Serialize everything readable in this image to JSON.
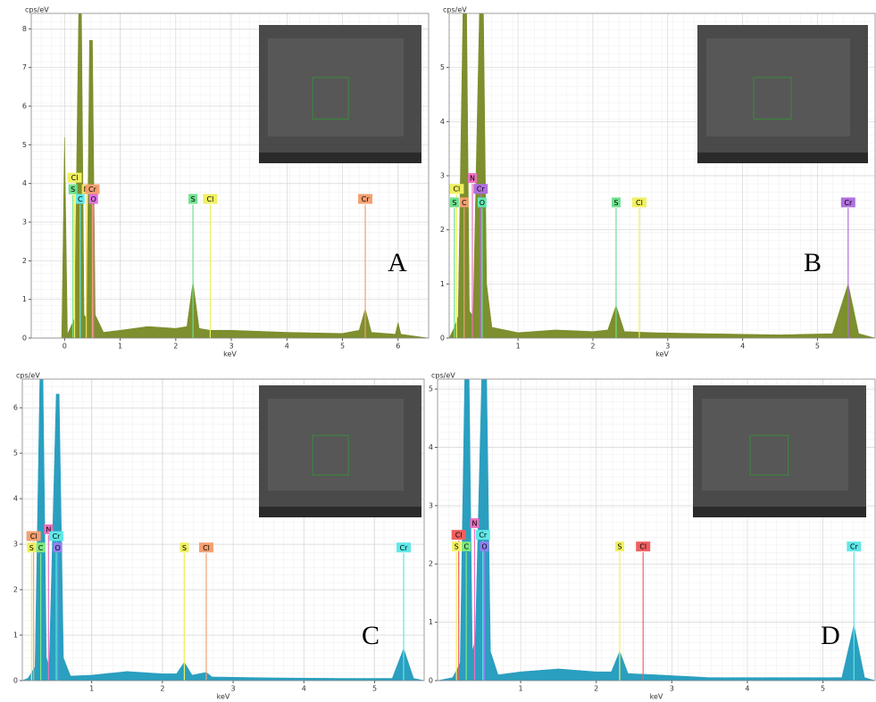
{
  "chart_data": [
    {
      "type": "area",
      "panel": "A",
      "ylabel": "cps/eV",
      "xlabel": "keV",
      "color": "#7d8f2e",
      "grid": true,
      "xlim": [
        -0.6,
        6.55
      ],
      "ylim": [
        0,
        8.4
      ],
      "xticks": [
        0,
        1,
        2,
        3,
        4,
        5,
        6
      ],
      "yticks": [
        0,
        1,
        2,
        3,
        4,
        5,
        6,
        7,
        8
      ],
      "x": [
        -0.6,
        -0.05,
        0,
        0.05,
        0.18,
        0.26,
        0.3,
        0.35,
        0.4,
        0.45,
        0.5,
        0.55,
        0.7,
        1.0,
        1.5,
        2.0,
        2.2,
        2.31,
        2.42,
        2.62,
        3.0,
        4.0,
        5.0,
        5.3,
        5.41,
        5.52,
        5.95,
        6.0,
        6.05,
        6.55
      ],
      "values": [
        0,
        0,
        5.2,
        0.1,
        0.5,
        9,
        9,
        0.6,
        0.5,
        7.7,
        7.7,
        0.6,
        0.15,
        0.2,
        0.3,
        0.25,
        0.3,
        1.45,
        0.25,
        0.2,
        0.2,
        0.15,
        0.12,
        0.2,
        0.75,
        0.15,
        0.1,
        0.4,
        0.1,
        0
      ],
      "markers": [
        {
          "label": "S",
          "x": 0.15,
          "y": 3.7,
          "color": "#6fe08f"
        },
        {
          "label": "Cl",
          "x": 0.18,
          "y": 4.0,
          "color": "#f0f060"
        },
        {
          "label": "C",
          "x": 0.28,
          "y": 3.45,
          "color": "#60e8e8"
        },
        {
          "label": "N",
          "x": 0.39,
          "y": 3.7,
          "color": "#f0e060"
        },
        {
          "label": "Cr",
          "x": 0.5,
          "y": 3.7,
          "color": "#f4a070"
        },
        {
          "label": "O",
          "x": 0.52,
          "y": 3.45,
          "color": "#e070e0"
        },
        {
          "label": "S",
          "x": 2.31,
          "y": 3.45,
          "color": "#6fe08f"
        },
        {
          "label": "Cl",
          "x": 2.62,
          "y": 3.45,
          "color": "#f0f060"
        },
        {
          "label": "Cr",
          "x": 5.41,
          "y": 3.45,
          "color": "#f4a070"
        }
      ]
    },
    {
      "type": "area",
      "panel": "B",
      "ylabel": "cps/eV",
      "xlabel": "keV",
      "color": "#7d8f2e",
      "grid": true,
      "xlim": [
        0.08,
        5.77
      ],
      "ylim": [
        0,
        6
      ],
      "xticks": [
        1,
        2,
        3,
        4,
        5
      ],
      "yticks": [
        0,
        1,
        2,
        3,
        4,
        5
      ],
      "x": [
        0.08,
        0.15,
        0.2,
        0.27,
        0.31,
        0.35,
        0.4,
        0.5,
        0.53,
        0.58,
        0.65,
        1.0,
        1.5,
        2.0,
        2.2,
        2.31,
        2.42,
        2.8,
        3.5,
        4.5,
        5.2,
        5.41,
        5.55,
        5.77
      ],
      "values": [
        0,
        0.2,
        0.4,
        6.5,
        6.5,
        0.5,
        0.4,
        7,
        7,
        1.0,
        0.2,
        0.1,
        0.15,
        0.12,
        0.15,
        0.6,
        0.12,
        0.1,
        0.08,
        0.06,
        0.08,
        1.0,
        0.08,
        0
      ],
      "markers": [
        {
          "label": "S",
          "x": 0.15,
          "y": 2.4,
          "color": "#6fe08f"
        },
        {
          "label": "Cl",
          "x": 0.18,
          "y": 2.65,
          "color": "#f0f060"
        },
        {
          "label": "C",
          "x": 0.28,
          "y": 2.4,
          "color": "#f4a070"
        },
        {
          "label": "N",
          "x": 0.39,
          "y": 2.85,
          "color": "#f070c0"
        },
        {
          "label": "Cr",
          "x": 0.5,
          "y": 2.65,
          "color": "#b070e0"
        },
        {
          "label": "O",
          "x": 0.52,
          "y": 2.4,
          "color": "#60e8b0"
        },
        {
          "label": "S",
          "x": 2.31,
          "y": 2.4,
          "color": "#6fe08f"
        },
        {
          "label": "Cl",
          "x": 2.62,
          "y": 2.4,
          "color": "#f0f060"
        },
        {
          "label": "Cr",
          "x": 5.41,
          "y": 2.4,
          "color": "#b070e0"
        }
      ]
    },
    {
      "type": "area",
      "panel": "C",
      "ylabel": "cps/eV",
      "xlabel": "keV",
      "color": "#2a9fc0",
      "grid": true,
      "xlim": [
        0.02,
        5.7
      ],
      "ylim": [
        0,
        6.63
      ],
      "xticks": [
        1,
        2,
        3,
        4,
        5
      ],
      "yticks": [
        0,
        1,
        2,
        3,
        4,
        5,
        6
      ],
      "x": [
        0.02,
        0.1,
        0.2,
        0.27,
        0.31,
        0.36,
        0.4,
        0.5,
        0.54,
        0.6,
        0.7,
        1.0,
        1.5,
        2.0,
        2.2,
        2.31,
        2.42,
        2.62,
        2.7,
        3.5,
        4.5,
        5.25,
        5.41,
        5.55,
        5.7
      ],
      "values": [
        0,
        0.05,
        0.3,
        6.8,
        6.8,
        0.5,
        0.3,
        6.3,
        6.3,
        0.5,
        0.1,
        0.12,
        0.2,
        0.15,
        0.15,
        0.4,
        0.12,
        0.18,
        0.08,
        0.06,
        0.05,
        0.05,
        0.7,
        0.05,
        0
      ],
      "markers": [
        {
          "label": "S",
          "x": 0.15,
          "y": 2.8,
          "color": "#f0f060"
        },
        {
          "label": "Cl",
          "x": 0.18,
          "y": 3.05,
          "color": "#f4a070"
        },
        {
          "label": "C",
          "x": 0.28,
          "y": 2.8,
          "color": "#80e880"
        },
        {
          "label": "N",
          "x": 0.39,
          "y": 3.2,
          "color": "#f070c0"
        },
        {
          "label": "Cr",
          "x": 0.5,
          "y": 3.05,
          "color": "#60e8e8"
        },
        {
          "label": "O",
          "x": 0.52,
          "y": 2.8,
          "color": "#9080f0"
        },
        {
          "label": "S",
          "x": 2.31,
          "y": 2.8,
          "color": "#f0f060"
        },
        {
          "label": "Cl",
          "x": 2.62,
          "y": 2.8,
          "color": "#f4a070"
        },
        {
          "label": "Cr",
          "x": 5.41,
          "y": 2.8,
          "color": "#60e8e8"
        }
      ]
    },
    {
      "type": "area",
      "panel": "D",
      "ylabel": "cps/eV",
      "xlabel": "keV",
      "color": "#2a9fc0",
      "grid": true,
      "xlim": [
        -0.1,
        5.69
      ],
      "ylim": [
        0,
        5.17
      ],
      "xticks": [
        1,
        2,
        3,
        4,
        5
      ],
      "yticks": [
        0,
        1,
        2,
        3,
        4,
        5
      ],
      "x": [
        -0.1,
        0.1,
        0.2,
        0.27,
        0.31,
        0.36,
        0.4,
        0.5,
        0.54,
        0.6,
        0.7,
        1.0,
        1.5,
        2.0,
        2.2,
        2.31,
        2.42,
        2.8,
        3.5,
        4.5,
        5.25,
        5.41,
        5.55,
        5.69
      ],
      "values": [
        0,
        0.05,
        0.3,
        6,
        6,
        0.5,
        0.7,
        6,
        6,
        0.5,
        0.1,
        0.15,
        0.2,
        0.15,
        0.15,
        0.5,
        0.12,
        0.1,
        0.05,
        0.05,
        0.05,
        0.95,
        0.05,
        0
      ],
      "markers": [
        {
          "label": "S",
          "x": 0.15,
          "y": 2.2,
          "color": "#f0f060"
        },
        {
          "label": "Cl",
          "x": 0.18,
          "y": 2.4,
          "color": "#f06060"
        },
        {
          "label": "C",
          "x": 0.28,
          "y": 2.2,
          "color": "#80e880"
        },
        {
          "label": "N",
          "x": 0.39,
          "y": 2.6,
          "color": "#f070c0"
        },
        {
          "label": "Cr",
          "x": 0.5,
          "y": 2.4,
          "color": "#60e8e8"
        },
        {
          "label": "O",
          "x": 0.52,
          "y": 2.2,
          "color": "#9080f0"
        },
        {
          "label": "S",
          "x": 2.31,
          "y": 2.2,
          "color": "#f0f060"
        },
        {
          "label": "Cl",
          "x": 2.62,
          "y": 2.2,
          "color": "#f06060"
        },
        {
          "label": "Cr",
          "x": 5.41,
          "y": 2.2,
          "color": "#60e8e8"
        }
      ]
    }
  ]
}
